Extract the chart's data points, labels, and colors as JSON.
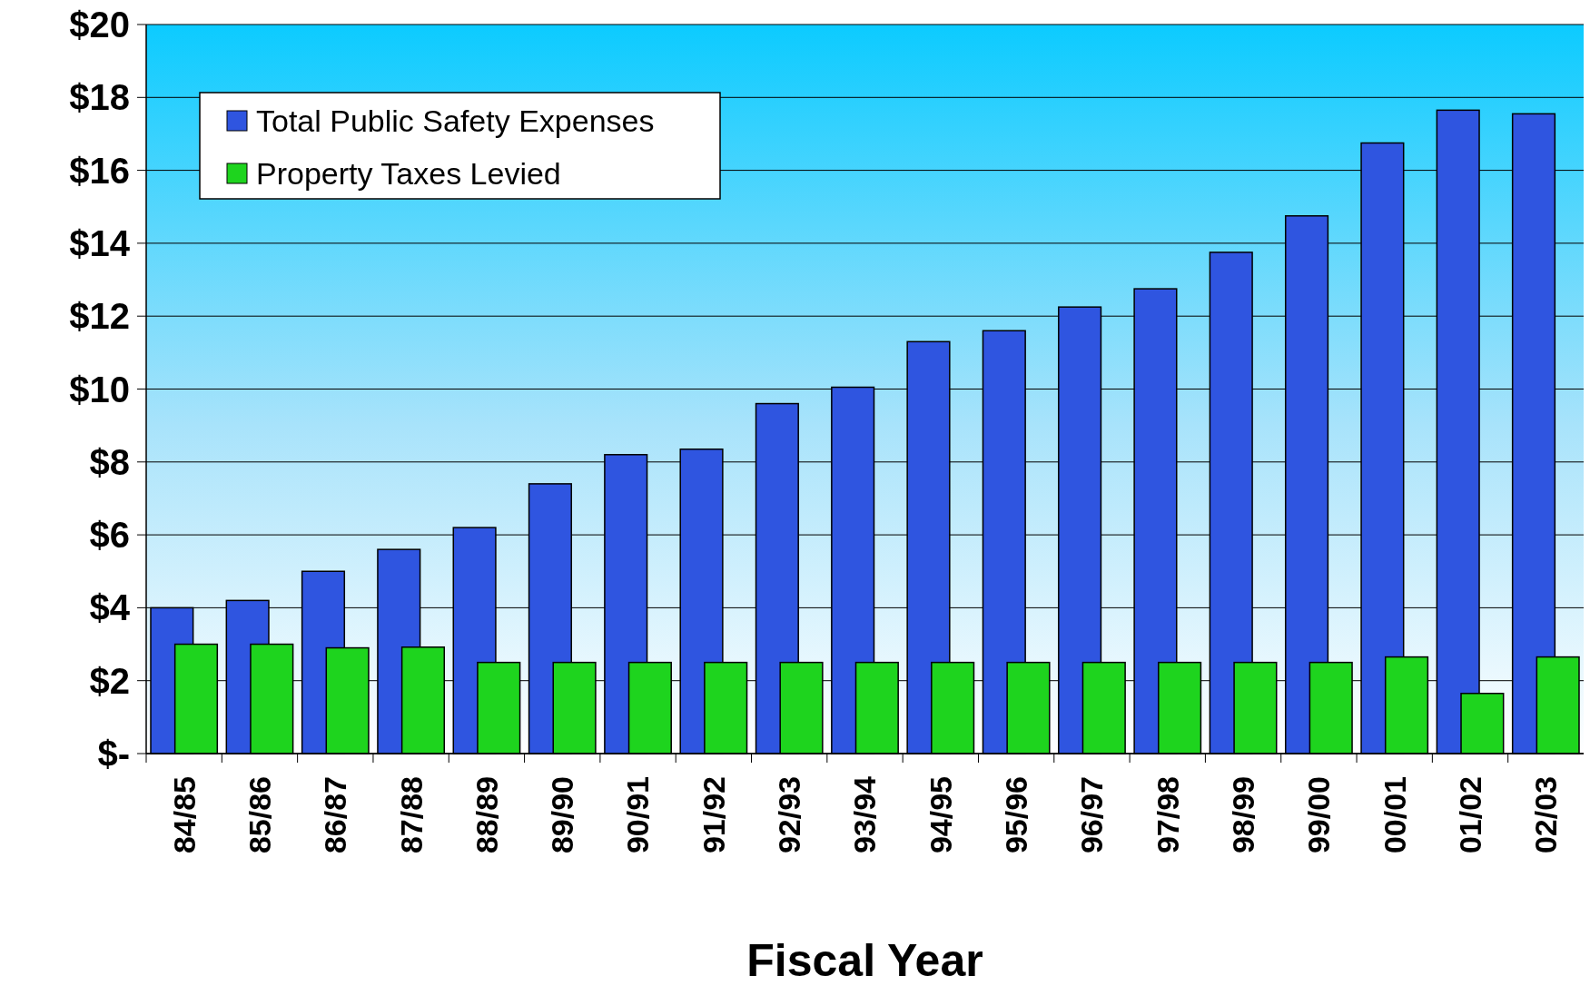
{
  "chart_data": {
    "type": "bar",
    "xlabel": "Fiscal Year",
    "categories": [
      "84/85",
      "85/86",
      "86/87",
      "87/88",
      "88/89",
      "89/90",
      "90/91",
      "91/92",
      "92/93",
      "93/94",
      "94/95",
      "95/96",
      "96/97",
      "97/98",
      "98/99",
      "99/00",
      "00/01",
      "01/02",
      "02/03"
    ],
    "series": [
      {
        "name": "Total Public Safety Expenses",
        "color": "#2f55e0",
        "values": [
          4.0,
          4.2,
          5.0,
          5.6,
          6.2,
          7.4,
          8.2,
          8.35,
          9.6,
          10.05,
          11.3,
          11.6,
          12.25,
          12.75,
          13.75,
          14.75,
          16.75,
          17.65,
          17.55
        ]
      },
      {
        "name": "Property Taxes Levied",
        "color": "#1ed41e",
        "values": [
          3.0,
          3.0,
          2.9,
          2.92,
          2.5,
          2.5,
          2.5,
          2.5,
          2.5,
          2.5,
          2.5,
          2.5,
          2.5,
          2.5,
          2.5,
          2.5,
          2.65,
          1.65,
          2.65
        ]
      }
    ],
    "ylim": [
      0,
      20
    ],
    "yticks": [
      {
        "value": 0,
        "label": "$-"
      },
      {
        "value": 2,
        "label": "$2"
      },
      {
        "value": 4,
        "label": "$4"
      },
      {
        "value": 6,
        "label": "$6"
      },
      {
        "value": 8,
        "label": "$8"
      },
      {
        "value": 10,
        "label": "$10"
      },
      {
        "value": 12,
        "label": "$12"
      },
      {
        "value": 14,
        "label": "$14"
      },
      {
        "value": 16,
        "label": "$16"
      },
      {
        "value": 18,
        "label": "$18"
      },
      {
        "value": 20,
        "label": "$20"
      }
    ],
    "grid": "y",
    "legend": "top left"
  }
}
